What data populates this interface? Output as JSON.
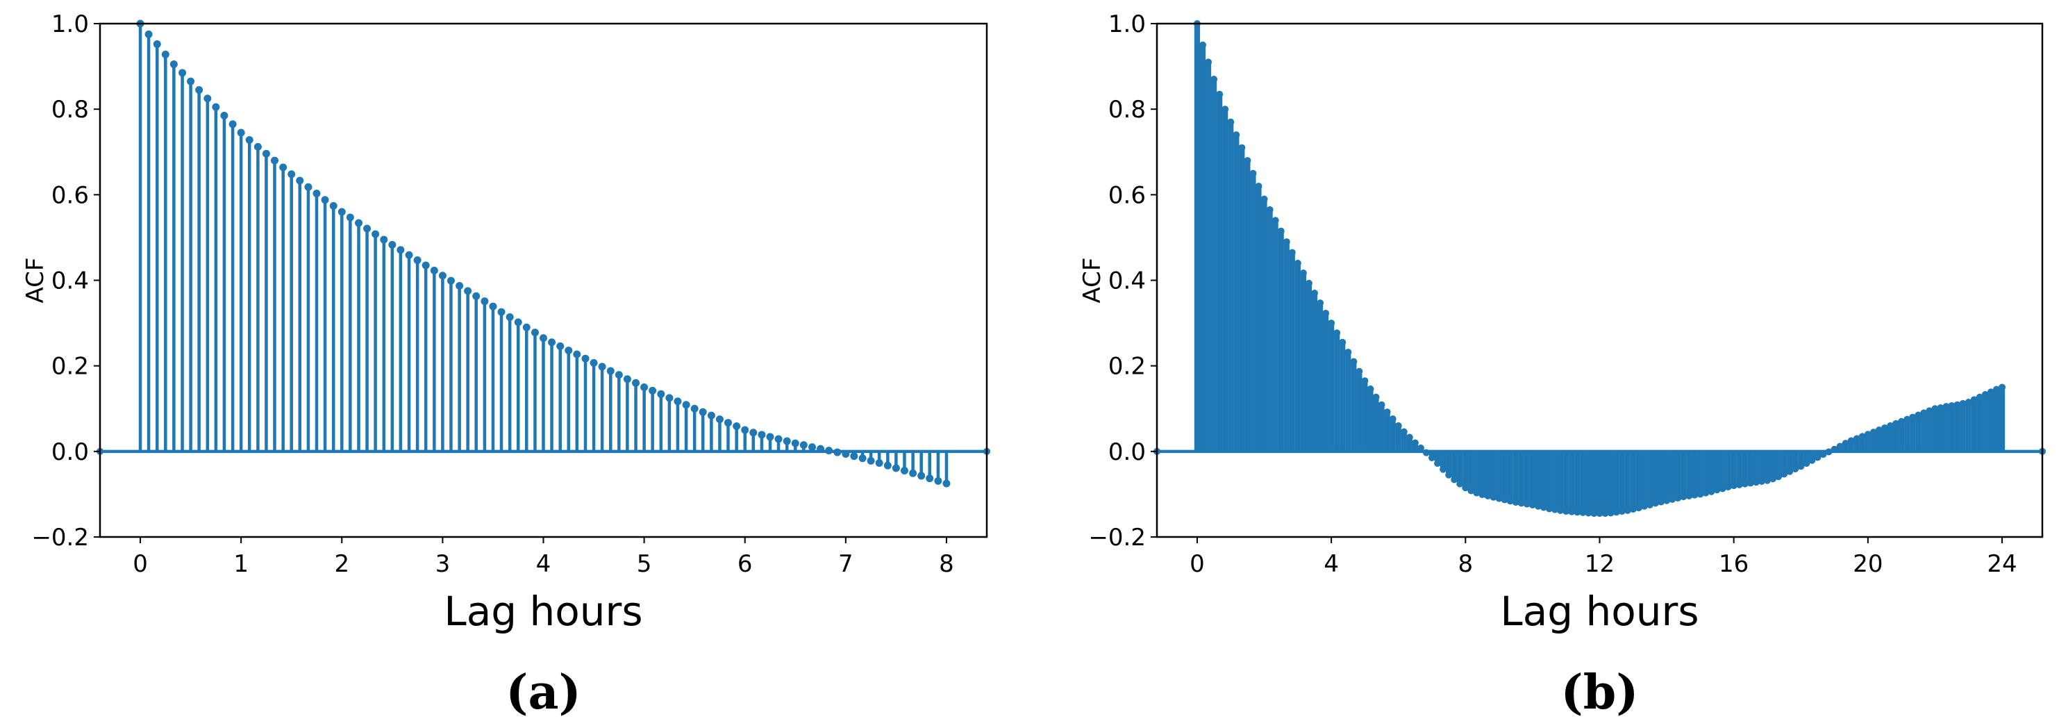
{
  "chart_data": [
    {
      "type": "stem",
      "caption": "(a)",
      "xlabel": "Lag hours",
      "ylabel": "ACF",
      "color": "#1f77b4",
      "xlim": [
        -0.4,
        8.4
      ],
      "ylim": [
        -0.2,
        1.0
      ],
      "xticks": [
        0,
        1,
        2,
        3,
        4,
        5,
        6,
        7,
        8
      ],
      "yticks": [
        {
          "value": -0.2,
          "label": "−0.2"
        },
        {
          "value": 0,
          "label": "0.0"
        },
        0.2,
        0.4,
        0.6,
        0.8,
        {
          "value": 1,
          "label": "1.0"
        }
      ],
      "x": [
        0,
        0.083,
        0.167,
        0.25,
        0.333,
        0.417,
        0.5,
        0.583,
        0.667,
        0.75,
        0.833,
        0.917,
        1,
        1.083,
        1.167,
        1.25,
        1.333,
        1.417,
        1.5,
        1.583,
        1.667,
        1.75,
        1.833,
        1.917,
        2,
        2.083,
        2.167,
        2.25,
        2.333,
        2.417,
        2.5,
        2.583,
        2.667,
        2.75,
        2.833,
        2.917,
        3,
        3.083,
        3.167,
        3.25,
        3.333,
        3.417,
        3.5,
        3.583,
        3.667,
        3.75,
        3.833,
        3.917,
        4,
        4.083,
        4.167,
        4.25,
        4.333,
        4.417,
        4.5,
        4.583,
        4.667,
        4.75,
        4.833,
        4.917,
        5,
        5.083,
        5.167,
        5.25,
        5.333,
        5.417,
        5.5,
        5.583,
        5.667,
        5.75,
        5.833,
        5.917,
        6,
        6.083,
        6.167,
        6.25,
        6.333,
        6.417,
        6.5,
        6.583,
        6.667,
        6.75,
        6.833,
        6.917,
        7,
        7.083,
        7.167,
        7.25,
        7.333,
        7.417,
        7.5,
        7.583,
        7.667,
        7.75,
        7.833,
        7.917,
        8
      ],
      "values": [
        1.0,
        0.975,
        0.952,
        0.928,
        0.905,
        0.885,
        0.865,
        0.845,
        0.825,
        0.805,
        0.785,
        0.765,
        0.745,
        0.728,
        0.712,
        0.696,
        0.68,
        0.664,
        0.648,
        0.633,
        0.618,
        0.603,
        0.588,
        0.574,
        0.56,
        0.547,
        0.534,
        0.521,
        0.508,
        0.495,
        0.483,
        0.471,
        0.459,
        0.447,
        0.435,
        0.423,
        0.411,
        0.399,
        0.387,
        0.375,
        0.363,
        0.351,
        0.339,
        0.326,
        0.314,
        0.302,
        0.29,
        0.278,
        0.265,
        0.255,
        0.246,
        0.236,
        0.227,
        0.217,
        0.207,
        0.198,
        0.188,
        0.179,
        0.169,
        0.16,
        0.15,
        0.142,
        0.134,
        0.125,
        0.117,
        0.109,
        0.1,
        0.092,
        0.084,
        0.075,
        0.067,
        0.059,
        0.05,
        0.044,
        0.039,
        0.034,
        0.029,
        0.024,
        0.019,
        0.015,
        0.01,
        0.006,
        0.002,
        -0.002,
        -0.006,
        -0.011,
        -0.016,
        -0.022,
        -0.027,
        -0.033,
        -0.039,
        -0.045,
        -0.051,
        -0.057,
        -0.063,
        -0.069,
        -0.075
      ]
    },
    {
      "type": "stem",
      "caption": "(b)",
      "xlabel": "Lag hours",
      "ylabel": "ACF",
      "color": "#1f77b4",
      "xlim": [
        -1.2,
        25.2
      ],
      "ylim": [
        -0.2,
        1.0
      ],
      "xticks": [
        0,
        4,
        8,
        12,
        16,
        20,
        24
      ],
      "yticks": [
        {
          "value": -0.2,
          "label": "−0.2"
        },
        {
          "value": 0,
          "label": "0.0"
        },
        0.2,
        0.4,
        0.6,
        0.8,
        {
          "value": 1,
          "label": "1.0"
        }
      ],
      "x": [
        0,
        0.167,
        0.333,
        0.5,
        0.667,
        0.833,
        1,
        1.167,
        1.333,
        1.5,
        1.667,
        1.833,
        2,
        2.167,
        2.333,
        2.5,
        2.667,
        2.833,
        3,
        3.167,
        3.333,
        3.5,
        3.667,
        3.833,
        4,
        4.167,
        4.333,
        4.5,
        4.667,
        4.833,
        5,
        5.167,
        5.333,
        5.5,
        5.667,
        5.833,
        6,
        6.167,
        6.333,
        6.5,
        6.667,
        6.833,
        7,
        7.167,
        7.333,
        7.5,
        7.667,
        7.833,
        8,
        8.167,
        8.333,
        8.5,
        8.667,
        8.833,
        9,
        9.167,
        9.333,
        9.5,
        9.667,
        9.833,
        10,
        10.167,
        10.333,
        10.5,
        10.667,
        10.833,
        11,
        11.167,
        11.333,
        11.5,
        11.667,
        11.833,
        12,
        12.167,
        12.333,
        12.5,
        12.667,
        12.833,
        13,
        13.167,
        13.333,
        13.5,
        13.667,
        13.833,
        14,
        14.167,
        14.333,
        14.5,
        14.667,
        14.833,
        15,
        15.167,
        15.333,
        15.5,
        15.667,
        15.833,
        16,
        16.167,
        16.333,
        16.5,
        16.667,
        16.833,
        17,
        17.167,
        17.333,
        17.5,
        17.667,
        17.833,
        18,
        18.167,
        18.333,
        18.5,
        18.667,
        18.833,
        19,
        19.167,
        19.333,
        19.5,
        19.667,
        19.833,
        20,
        20.167,
        20.333,
        20.5,
        20.667,
        20.833,
        21,
        21.167,
        21.333,
        21.5,
        21.667,
        21.833,
        22,
        22.167,
        22.333,
        22.5,
        22.667,
        22.833,
        23,
        23.167,
        23.333,
        23.5,
        23.667,
        23.833,
        24
      ],
      "values": [
        1.0,
        0.95,
        0.91,
        0.87,
        0.835,
        0.8,
        0.77,
        0.74,
        0.71,
        0.68,
        0.65,
        0.62,
        0.59,
        0.565,
        0.54,
        0.515,
        0.49,
        0.465,
        0.44,
        0.417,
        0.393,
        0.37,
        0.347,
        0.323,
        0.3,
        0.277,
        0.255,
        0.232,
        0.21,
        0.187,
        0.165,
        0.146,
        0.127,
        0.109,
        0.092,
        0.076,
        0.06,
        0.046,
        0.033,
        0.02,
        0.008,
        -0.003,
        -0.015,
        -0.028,
        -0.042,
        -0.055,
        -0.066,
        -0.076,
        -0.085,
        -0.092,
        -0.097,
        -0.101,
        -0.104,
        -0.107,
        -0.11,
        -0.113,
        -0.116,
        -0.119,
        -0.121,
        -0.123,
        -0.125,
        -0.128,
        -0.131,
        -0.134,
        -0.136,
        -0.138,
        -0.14,
        -0.141,
        -0.142,
        -0.143,
        -0.144,
        -0.145,
        -0.145,
        -0.145,
        -0.144,
        -0.142,
        -0.14,
        -0.138,
        -0.135,
        -0.132,
        -0.128,
        -0.125,
        -0.121,
        -0.118,
        -0.115,
        -0.112,
        -0.109,
        -0.106,
        -0.104,
        -0.102,
        -0.1,
        -0.097,
        -0.094,
        -0.09,
        -0.087,
        -0.083,
        -0.08,
        -0.078,
        -0.076,
        -0.074,
        -0.072,
        -0.07,
        -0.068,
        -0.064,
        -0.059,
        -0.053,
        -0.047,
        -0.041,
        -0.035,
        -0.028,
        -0.021,
        -0.014,
        -0.007,
        -0.001,
        0.005,
        0.012,
        0.019,
        0.025,
        0.03,
        0.035,
        0.04,
        0.045,
        0.05,
        0.055,
        0.06,
        0.065,
        0.07,
        0.075,
        0.08,
        0.085,
        0.09,
        0.095,
        0.1,
        0.102,
        0.105,
        0.107,
        0.109,
        0.112,
        0.115,
        0.121,
        0.127,
        0.133,
        0.139,
        0.145,
        0.15
      ]
    }
  ]
}
